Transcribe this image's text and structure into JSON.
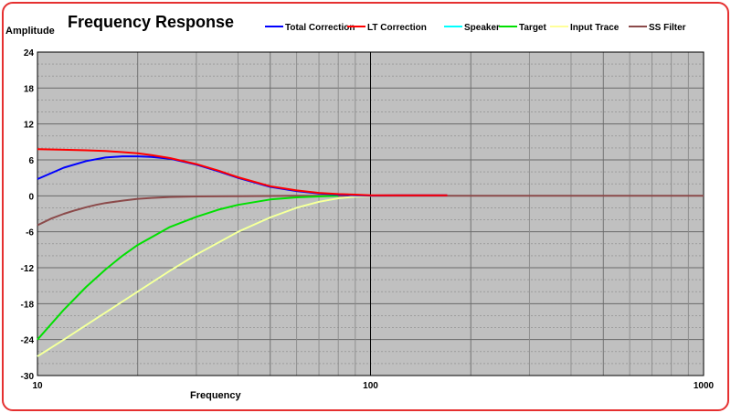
{
  "chart_data": {
    "type": "line",
    "title": "Frequency Response",
    "ylabel": "Amplitude",
    "xlabel": "Frequency",
    "xscale": "log",
    "xlim": [
      10,
      1000
    ],
    "ylim": [
      -30,
      24
    ],
    "grid": true,
    "legend_position": "top",
    "x_ticks": [
      "10",
      "100",
      "1000"
    ],
    "y_ticks": [
      "24",
      "18",
      "12",
      "6",
      "0",
      "-6",
      "-12",
      "-18",
      "-24",
      "-30"
    ],
    "background_color": "#c0c0c0",
    "series": [
      {
        "name": "Total Correction",
        "color": "#0000ff",
        "x": [
          10,
          12,
          14,
          16,
          18,
          20,
          22,
          25,
          30,
          35,
          40,
          50,
          60,
          70,
          80,
          90,
          100,
          120,
          150,
          170
        ],
        "y": [
          2.8,
          4.7,
          5.8,
          6.4,
          6.6,
          6.6,
          6.5,
          6.2,
          5.2,
          4.1,
          3.0,
          1.5,
          0.8,
          0.4,
          0.2,
          0.1,
          0.05,
          0.1,
          0.1,
          0.1
        ]
      },
      {
        "name": "LT Correction",
        "color": "#ff0000",
        "x": [
          10,
          12,
          14,
          16,
          18,
          20,
          22,
          25,
          30,
          35,
          40,
          50,
          60,
          70,
          80,
          90,
          100,
          120,
          150,
          170
        ],
        "y": [
          7.8,
          7.7,
          7.6,
          7.5,
          7.3,
          7.1,
          6.8,
          6.3,
          5.3,
          4.2,
          3.1,
          1.6,
          0.9,
          0.5,
          0.3,
          0.2,
          0.1,
          0.1,
          0.1,
          0.1
        ]
      },
      {
        "name": "Speaker",
        "color": "#00ffff",
        "x": [
          10,
          12,
          15,
          20,
          25,
          30,
          40,
          50,
          60,
          70,
          80,
          90,
          100
        ],
        "y": [
          -26.8,
          -24.0,
          -20.5,
          -16.0,
          -12.5,
          -9.8,
          -6.0,
          -3.6,
          -2.0,
          -1.0,
          -0.4,
          -0.15,
          0
        ]
      },
      {
        "name": "Target",
        "color": "#00e000",
        "x": [
          10,
          12,
          14,
          16,
          18,
          20,
          25,
          30,
          35,
          40,
          50,
          60,
          70,
          80
        ],
        "y": [
          -24.0,
          -19.0,
          -15.2,
          -12.3,
          -10.0,
          -8.2,
          -5.2,
          -3.5,
          -2.3,
          -1.5,
          -0.6,
          -0.25,
          -0.1,
          0
        ]
      },
      {
        "name": "Input Trace",
        "color": "#ffff99",
        "x": [
          10,
          12,
          15,
          20,
          25,
          30,
          40,
          50,
          60,
          70,
          80,
          90,
          100
        ],
        "y": [
          -26.8,
          -24.0,
          -20.5,
          -16.0,
          -12.5,
          -9.8,
          -6.0,
          -3.6,
          -2.0,
          -1.0,
          -0.4,
          -0.15,
          0
        ]
      },
      {
        "name": "SS Filter",
        "color": "#8b4a4a",
        "x": [
          10,
          11,
          12,
          13,
          14,
          15,
          16,
          18,
          20,
          22,
          25,
          30,
          40,
          60,
          100,
          200,
          500,
          1000
        ],
        "y": [
          -4.9,
          -3.8,
          -3.0,
          -2.4,
          -1.9,
          -1.5,
          -1.2,
          -0.8,
          -0.5,
          -0.35,
          -0.2,
          -0.1,
          -0.05,
          0,
          0,
          0,
          0,
          0
        ]
      }
    ]
  }
}
